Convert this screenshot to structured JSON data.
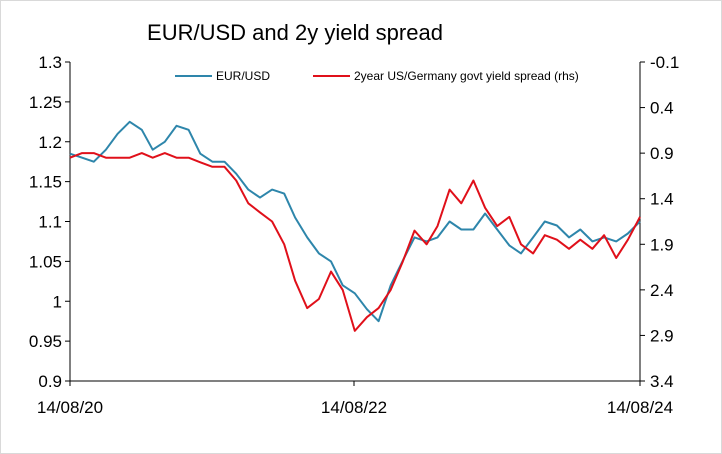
{
  "chart_data": {
    "type": "line",
    "title": "EUR/USD and 2y yield spread",
    "x_ticks": [
      "14/08/20",
      "14/08/22",
      "14/08/24"
    ],
    "y_left": {
      "min": 0.9,
      "max": 1.3,
      "ticks": [
        "1.3",
        "1.25",
        "1.2",
        "1.15",
        "1.1",
        "1.05",
        "1",
        "0.95",
        "0.9"
      ]
    },
    "y_right": {
      "min": -0.1,
      "max": 3.4,
      "inverted": true,
      "ticks": [
        "-0.1",
        "0.4",
        "0.9",
        "1.4",
        "1.9",
        "2.4",
        "2.9",
        "3.4"
      ]
    },
    "grid": false,
    "legend_position": "top",
    "series": [
      {
        "name": "EUR/USD",
        "axis": "left",
        "color": "#2e86ab",
        "x": [
          "2020-08-14",
          "2020-09-14",
          "2020-10-14",
          "2020-11-14",
          "2020-12-14",
          "2021-01-14",
          "2021-02-14",
          "2021-03-14",
          "2021-04-14",
          "2021-05-14",
          "2021-06-14",
          "2021-07-14",
          "2021-08-14",
          "2021-09-14",
          "2021-10-14",
          "2021-11-14",
          "2021-12-14",
          "2022-01-14",
          "2022-02-14",
          "2022-03-14",
          "2022-04-14",
          "2022-05-14",
          "2022-06-14",
          "2022-07-14",
          "2022-08-14",
          "2022-09-14",
          "2022-10-14",
          "2022-11-14",
          "2022-12-14",
          "2023-01-14",
          "2023-02-14",
          "2023-03-14",
          "2023-04-14",
          "2023-05-14",
          "2023-06-14",
          "2023-07-14",
          "2023-08-14",
          "2023-09-14",
          "2023-10-14",
          "2023-11-14",
          "2023-12-14",
          "2024-01-14",
          "2024-02-14",
          "2024-03-14",
          "2024-04-14",
          "2024-05-14",
          "2024-06-14",
          "2024-07-14",
          "2024-08-14"
        ],
        "values": [
          1.185,
          1.18,
          1.175,
          1.19,
          1.21,
          1.225,
          1.215,
          1.19,
          1.2,
          1.22,
          1.215,
          1.185,
          1.175,
          1.175,
          1.16,
          1.14,
          1.13,
          1.14,
          1.135,
          1.105,
          1.08,
          1.06,
          1.05,
          1.02,
          1.01,
          0.99,
          0.975,
          1.02,
          1.05,
          1.08,
          1.075,
          1.08,
          1.1,
          1.09,
          1.09,
          1.11,
          1.09,
          1.07,
          1.06,
          1.08,
          1.1,
          1.095,
          1.08,
          1.09,
          1.075,
          1.08,
          1.075,
          1.085,
          1.1
        ]
      },
      {
        "name": "2year US/Germany govt yield spread (rhs)",
        "axis": "right",
        "color": "#e0101a",
        "x": [
          "2020-08-14",
          "2020-09-14",
          "2020-10-14",
          "2020-11-14",
          "2020-12-14",
          "2021-01-14",
          "2021-02-14",
          "2021-03-14",
          "2021-04-14",
          "2021-05-14",
          "2021-06-14",
          "2021-07-14",
          "2021-08-14",
          "2021-09-14",
          "2021-10-14",
          "2021-11-14",
          "2021-12-14",
          "2022-01-14",
          "2022-02-14",
          "2022-03-14",
          "2022-04-14",
          "2022-05-14",
          "2022-06-14",
          "2022-07-14",
          "2022-08-14",
          "2022-09-14",
          "2022-10-14",
          "2022-11-14",
          "2022-12-14",
          "2023-01-14",
          "2023-02-14",
          "2023-03-14",
          "2023-04-14",
          "2023-05-14",
          "2023-06-14",
          "2023-07-14",
          "2023-08-14",
          "2023-09-14",
          "2023-10-14",
          "2023-11-14",
          "2023-12-14",
          "2024-01-14",
          "2024-02-14",
          "2024-03-14",
          "2024-04-14",
          "2024-05-14",
          "2024-06-14",
          "2024-07-14",
          "2024-08-14"
        ],
        "values": [
          0.95,
          0.9,
          0.9,
          0.95,
          0.95,
          0.95,
          0.9,
          0.95,
          0.9,
          0.95,
          0.95,
          1.0,
          1.05,
          1.05,
          1.2,
          1.45,
          1.55,
          1.65,
          1.9,
          2.3,
          2.6,
          2.5,
          2.2,
          2.4,
          2.85,
          2.7,
          2.6,
          2.4,
          2.1,
          1.75,
          1.9,
          1.7,
          1.3,
          1.45,
          1.2,
          1.5,
          1.7,
          1.6,
          1.9,
          2.0,
          1.8,
          1.85,
          1.95,
          1.85,
          1.95,
          1.8,
          2.05,
          1.85,
          1.6
        ]
      }
    ]
  }
}
